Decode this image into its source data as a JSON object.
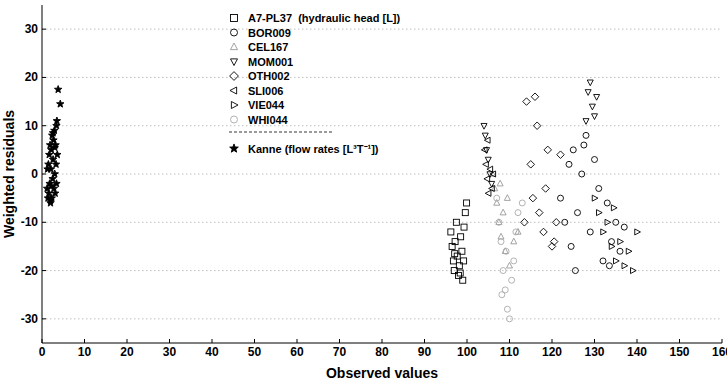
{
  "chart_data": {
    "type": "scatter",
    "x_label": "Observed values",
    "y_label": "Weighted residuals",
    "xlim": [
      0,
      160
    ],
    "ylim": [
      -35,
      35
    ],
    "xticks": [
      0,
      10,
      20,
      30,
      40,
      50,
      60,
      70,
      80,
      90,
      100,
      110,
      120,
      130,
      140,
      150,
      160
    ],
    "yticks": [
      -30,
      -20,
      -10,
      0,
      10,
      20,
      30
    ],
    "grid": true,
    "legend": "top",
    "series": [
      {
        "name": "A7-PL37  (hydraulic head [L])",
        "marker": "square",
        "color": "#000000",
        "x": [
          96.2,
          96.5,
          96.8,
          97.0,
          97.2,
          97.5,
          97.7,
          98.0,
          98.2,
          98.5,
          98.8,
          99.0,
          99.3,
          99.6,
          99.9,
          97.1,
          98.4,
          99.2
        ],
        "values": [
          -12,
          -15,
          -18,
          -20,
          -14,
          -10,
          -17,
          -21,
          -19,
          -13,
          -16,
          -22,
          -11,
          -8,
          -6,
          -16.5,
          -20.5,
          -18
        ]
      },
      {
        "name": "BOR009",
        "marker": "circle",
        "color": "#000000",
        "x": [
          122,
          123,
          124,
          124.5,
          125,
          126,
          127,
          128,
          129,
          130,
          131,
          132,
          133,
          134,
          135,
          136,
          137,
          125.5,
          127.5,
          133.5
        ],
        "values": [
          -5,
          -10,
          2,
          -15,
          5,
          -8,
          0,
          8,
          -12,
          3,
          -3,
          -18,
          -6,
          -14,
          -10,
          -16,
          -11,
          -20,
          6,
          -19
        ]
      },
      {
        "name": "CEL167",
        "marker": "triangle-up",
        "color": "#999999",
        "x": [
          106,
          106.5,
          107,
          107.5,
          108,
          108.5,
          109,
          110,
          111,
          112,
          107.8,
          109.5
        ],
        "values": [
          0,
          -3,
          -6,
          -10,
          -13,
          -8,
          -16,
          -19,
          -14,
          -12,
          -2,
          -5
        ]
      },
      {
        "name": "MOM001",
        "marker": "triangle-down",
        "color": "#000000",
        "x": [
          104,
          104.3,
          104.6,
          105,
          105.4,
          105.8,
          128.5,
          129,
          129.5,
          130,
          130.5,
          128
        ],
        "values": [
          10,
          8,
          5,
          3,
          0,
          -2,
          17,
          19,
          14,
          12,
          16,
          11
        ]
      },
      {
        "name": "OTH002",
        "marker": "diamond",
        "color": "#000000",
        "x": [
          114,
          115,
          115.5,
          116,
          117,
          118,
          119,
          120,
          121,
          122,
          116.5,
          118.5,
          113.5,
          120.5
        ],
        "values": [
          15,
          2,
          -5,
          16,
          -8,
          -12,
          5,
          -15,
          -10,
          4,
          10,
          -3,
          -10,
          -14
        ]
      },
      {
        "name": "SLI006",
        "marker": "triangle-left",
        "color": "#000000",
        "x": [
          104.2,
          104.5,
          104.8,
          105.1,
          105.5,
          105.9,
          106.2,
          104.9
        ],
        "values": [
          5,
          2,
          -1,
          -4,
          1,
          -3,
          0,
          7
        ]
      },
      {
        "name": "VIE044",
        "marker": "triangle-right",
        "color": "#000000",
        "x": [
          130,
          131,
          132,
          133,
          134,
          135,
          136,
          137,
          138,
          139,
          140,
          134.5
        ],
        "values": [
          -5,
          -8,
          -12,
          -10,
          -15,
          -18,
          -14,
          -19,
          -16,
          -20,
          -12,
          -7
        ]
      },
      {
        "name": "WHI044",
        "marker": "circle",
        "color": "#aaaaaa",
        "x": [
          107,
          107.5,
          108,
          108.5,
          109,
          109.5,
          110,
          110.5,
          111,
          111.5,
          112,
          113,
          108.2,
          109.2
        ],
        "values": [
          -5,
          -10,
          -14,
          -20,
          -24,
          -28,
          -30,
          -22,
          -18,
          -12,
          -8,
          -6,
          -25,
          -16
        ]
      },
      {
        "name": "Kanne (flow rates [L³T⁻¹])",
        "marker": "star",
        "color": "#000000",
        "x": [
          1.2,
          1.4,
          1.5,
          1.6,
          1.7,
          1.8,
          1.9,
          2.0,
          2.1,
          2.2,
          2.3,
          2.4,
          2.5,
          2.6,
          2.7,
          2.8,
          2.9,
          3.0,
          3.1,
          3.2,
          3.3,
          3.4,
          3.5,
          3.6,
          3.8,
          4.3,
          1.3,
          2.0,
          2.6,
          3.0,
          3.4,
          2.2
        ],
        "values": [
          -3,
          -5,
          2,
          -4,
          4,
          -2,
          6,
          -6,
          1,
          5,
          -5,
          8,
          -1,
          3,
          7,
          -3,
          9,
          0,
          -4,
          6,
          2,
          -2,
          11,
          4,
          17.5,
          14.5,
          1,
          -5.5,
          8.5,
          5.5,
          10,
          -2.5
        ]
      }
    ]
  }
}
